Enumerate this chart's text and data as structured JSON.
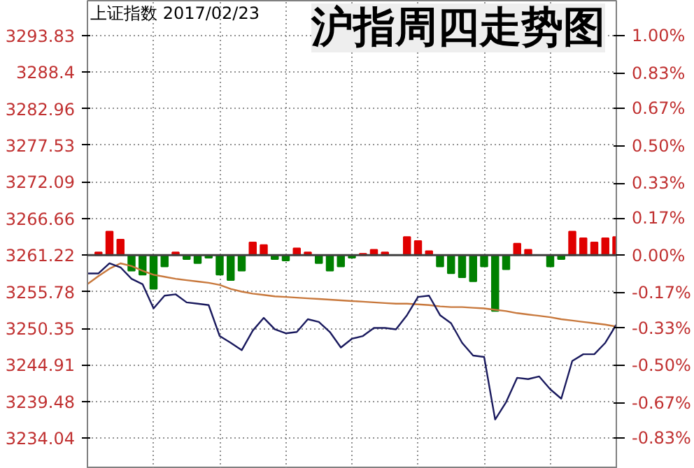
{
  "chart_data": {
    "type": "line",
    "title": "沪指周四走势图",
    "subtitle": "上证指数 2017/02/23",
    "categories": [
      null,
      null,
      null,
      null,
      null,
      null,
      null,
      null,
      null,
      null,
      null,
      null,
      null,
      null,
      null,
      null,
      null,
      null,
      null,
      null,
      null,
      null,
      null,
      null,
      null,
      null,
      null,
      null,
      null,
      null,
      null,
      null,
      null,
      null,
      null,
      null,
      null,
      null,
      null,
      null,
      null,
      null,
      null,
      null,
      null,
      null,
      null,
      null,
      null
    ],
    "series": [
      {
        "type": "bar",
        "base": [
          null,
          3261.22,
          3261.22,
          3261.22,
          3261.22,
          3261.22,
          3261.22,
          3261.22,
          3261.22,
          3261.22,
          3261.22,
          3261.22,
          3261.22,
          3261.22,
          3261.22,
          3261.22,
          3261.22,
          3261.22,
          3261.22,
          3261.22,
          3261.22,
          3261.22,
          3261.22,
          3261.22,
          3261.22,
          3261.22,
          3261.22,
          3261.22,
          null,
          3261.22,
          3261.22,
          3261.22,
          3261.22,
          3261.22,
          3261.22,
          3261.22,
          3261.22,
          3261.22,
          3261.22,
          3261.22,
          3261.22,
          null,
          3261.22,
          3261.22,
          3261.22,
          3261.22,
          3261.22,
          3261.22,
          3261.22
        ],
        "values": [
          null,
          0.4,
          3.5,
          2.3,
          -2.3,
          -2.9,
          -5.0,
          -1.7,
          0.4,
          -0.6,
          -1.2,
          -0.4,
          -2.9,
          -3.7,
          -2.3,
          1.9,
          1.5,
          -0.6,
          -0.8,
          1.0,
          0.4,
          -1.2,
          -2.3,
          -1.7,
          -0.4,
          0.2,
          0.8,
          0.4,
          null,
          2.7,
          2.1,
          0.6,
          -1.7,
          -2.7,
          -3.3,
          -3.9,
          -1.7,
          -8.3,
          -2.1,
          1.7,
          0.8,
          null,
          -1.7,
          -0.6,
          3.5,
          2.5,
          1.9,
          2.5,
          2.7
        ],
        "colors": [
          "#e00000",
          "#e00000",
          "#e00000",
          "#e00000",
          "#008000",
          "#008000",
          "#008000",
          "#008000",
          "#e00000",
          "#008000",
          "#008000",
          "#008000",
          "#008000",
          "#008000",
          "#008000",
          "#e00000",
          "#e00000",
          "#008000",
          "#008000",
          "#e00000",
          "#e00000",
          "#008000",
          "#008000",
          "#008000",
          "#008000",
          "#e00000",
          "#e00000",
          "#e00000",
          "#e00000",
          "#e00000",
          "#e00000",
          "#e00000",
          "#008000",
          "#008000",
          "#008000",
          "#008000",
          "#008000",
          "#008000",
          "#008000",
          "#e00000",
          "#e00000",
          "#e00000",
          "#008000",
          "#008000",
          "#e00000",
          "#e00000",
          "#e00000",
          "#e00000",
          "#e00000"
        ]
      },
      {
        "color": "#c8783c",
        "values": [
          3256.9,
          3258.1,
          3259.2,
          3260.0,
          3259.6,
          3258.9,
          3258.3,
          3258.0,
          3257.7,
          3257.5,
          3257.3,
          3257.1,
          3256.8,
          3256.2,
          3255.8,
          3255.5,
          3255.3,
          3255.1,
          3255.0,
          3254.9,
          3254.8,
          3254.7,
          3254.6,
          3254.5,
          3254.4,
          3254.3,
          3254.2,
          3254.1,
          3254.0,
          3254.0,
          3253.9,
          3253.8,
          3253.6,
          3253.5,
          3253.5,
          3253.4,
          3253.3,
          3253.1,
          3252.9,
          3252.6,
          3252.4,
          3252.2,
          3252.0,
          3251.7,
          3251.5,
          3251.3,
          3251.1,
          3250.9,
          3250.6
        ]
      },
      {
        "color": "#1a1a5e",
        "values": [
          3258.5,
          3258.5,
          3260.0,
          3259.4,
          3257.7,
          3256.9,
          3253.3,
          3255.2,
          3255.4,
          3254.2,
          3254.0,
          3253.8,
          3249.2,
          3248.2,
          3247.1,
          3250.0,
          3251.9,
          3250.2,
          3249.6,
          3249.8,
          3251.7,
          3251.3,
          3249.8,
          3247.5,
          3248.8,
          3249.2,
          3250.4,
          3250.4,
          3250.2,
          3252.3,
          3255.0,
          3255.2,
          3252.3,
          3251.1,
          3248.2,
          3246.3,
          3246.1,
          3236.8,
          3239.4,
          3243.0,
          3242.8,
          3243.2,
          3241.3,
          3239.9,
          3245.5,
          3246.5,
          3246.5,
          3248.2,
          3250.9
        ]
      }
    ],
    "ylim": [
      3229.5,
      3299.0
    ],
    "yticks": [
      3234.04,
      3239.48,
      3244.91,
      3250.35,
      3255.78,
      3261.22,
      3266.66,
      3272.09,
      3277.53,
      3282.96,
      3288.4,
      3293.83
    ],
    "y2lim": [
      -0.97,
      1.16
    ],
    "y2ticks": [
      {
        "value": -0.83,
        "label": "-0.83%"
      },
      {
        "value": -0.67,
        "label": "-0.67%"
      },
      {
        "value": -0.5,
        "label": "-0.50%"
      },
      {
        "value": -0.33,
        "label": "-0.33%"
      },
      {
        "value": -0.17,
        "label": "-0.17%"
      },
      {
        "value": 0.0,
        "label": "0.00%"
      },
      {
        "value": 0.17,
        "label": "0.17%"
      },
      {
        "value": 0.33,
        "label": "0.33%"
      },
      {
        "value": 0.5,
        "label": "0.50%"
      },
      {
        "value": 0.67,
        "label": "0.67%"
      },
      {
        "value": 0.83,
        "label": "0.83%"
      },
      {
        "value": 1.0,
        "label": "1.00%"
      }
    ],
    "ref_lines": [
      {
        "axis": "y",
        "value": 3261.22,
        "color": "#404040"
      }
    ],
    "grid": true,
    "tick_labels": "y"
  }
}
